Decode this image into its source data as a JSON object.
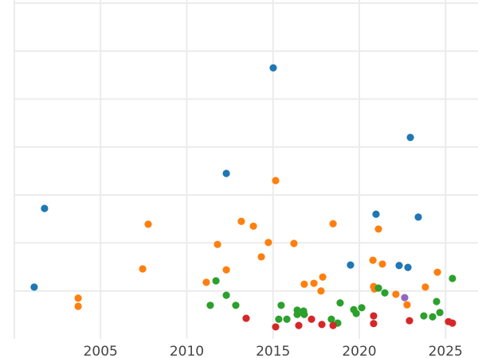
{
  "chart_data": {
    "type": "scatter",
    "title": "",
    "xlabel": "",
    "ylabel": "",
    "xlim": [
      2000,
      2026.9
    ],
    "ylim": [
      0,
      7
    ],
    "grid": true,
    "x_ticks": [
      2005,
      2010,
      2015,
      2020,
      2025
    ],
    "x_gridlines": [
      2000,
      2005,
      2010,
      2015,
      2020,
      2025
    ],
    "y_gridlines": [
      1,
      2,
      3,
      4,
      5,
      6,
      7
    ],
    "series": [
      {
        "name": "blue",
        "color": "#1f77b4",
        "points": [
          [
            2001.15,
            1.08
          ],
          [
            2001.75,
            2.72
          ],
          [
            2012.29,
            3.45
          ],
          [
            2015.01,
            5.65
          ],
          [
            2022.96,
            4.2
          ],
          [
            2020.97,
            2.6
          ],
          [
            2023.42,
            2.54
          ],
          [
            2019.49,
            1.54
          ],
          [
            2022.31,
            1.53
          ],
          [
            2022.82,
            1.49
          ]
        ]
      },
      {
        "name": "orange",
        "color": "#ff7f0e",
        "points": [
          [
            2003.7,
            0.85
          ],
          [
            2003.7,
            0.68
          ],
          [
            2007.44,
            1.46
          ],
          [
            2007.76,
            2.39
          ],
          [
            2011.13,
            1.18
          ],
          [
            2011.78,
            1.97
          ],
          [
            2012.29,
            1.44
          ],
          [
            2013.16,
            2.45
          ],
          [
            2013.86,
            2.35
          ],
          [
            2014.32,
            1.71
          ],
          [
            2014.73,
            2.01
          ],
          [
            2015.15,
            3.3
          ],
          [
            2016.21,
            1.99
          ],
          [
            2016.81,
            1.14
          ],
          [
            2017.37,
            1.16
          ],
          [
            2017.88,
            1.29
          ],
          [
            2017.78,
            1.0
          ],
          [
            2018.48,
            2.4
          ],
          [
            2020.79,
            1.64
          ],
          [
            2021.34,
            1.56
          ],
          [
            2020.83,
            1.09
          ],
          [
            2020.88,
            1.04
          ],
          [
            2021.11,
            2.29
          ],
          [
            2022.12,
            0.93
          ],
          [
            2022.77,
            0.71
          ],
          [
            2023.83,
            1.08
          ],
          [
            2024.53,
            1.39
          ]
        ]
      },
      {
        "name": "green",
        "color": "#2ca02c",
        "points": [
          [
            2011.36,
            0.7
          ],
          [
            2011.69,
            1.21
          ],
          [
            2012.29,
            0.91
          ],
          [
            2012.84,
            0.7
          ],
          [
            2015.47,
            0.7
          ],
          [
            2015.33,
            0.41
          ],
          [
            2015.8,
            0.41
          ],
          [
            2016.4,
            0.6
          ],
          [
            2016.4,
            0.51
          ],
          [
            2016.77,
            0.58
          ],
          [
            2016.81,
            0.51
          ],
          [
            2018.38,
            0.41
          ],
          [
            2018.75,
            0.33
          ],
          [
            2018.89,
            0.75
          ],
          [
            2019.68,
            0.61
          ],
          [
            2019.82,
            0.53
          ],
          [
            2020.14,
            0.65
          ],
          [
            2021.11,
            1.06
          ],
          [
            2021.48,
            0.96
          ],
          [
            2023.74,
            0.48
          ],
          [
            2024.25,
            0.46
          ],
          [
            2024.48,
            0.78
          ],
          [
            2024.67,
            0.55
          ],
          [
            2025.4,
            1.26
          ]
        ]
      },
      {
        "name": "red",
        "color": "#d62728",
        "points": [
          [
            2013.44,
            0.43
          ],
          [
            2015.15,
            0.25
          ],
          [
            2016.49,
            0.28
          ],
          [
            2017.23,
            0.41
          ],
          [
            2017.83,
            0.3
          ],
          [
            2018.48,
            0.28
          ],
          [
            2020.83,
            0.48
          ],
          [
            2020.83,
            0.32
          ],
          [
            2022.91,
            0.38
          ],
          [
            2025.17,
            0.36
          ],
          [
            2025.4,
            0.33
          ]
        ]
      },
      {
        "name": "purple",
        "color": "#9467bd",
        "points": [
          [
            2022.63,
            0.86
          ]
        ]
      }
    ]
  }
}
